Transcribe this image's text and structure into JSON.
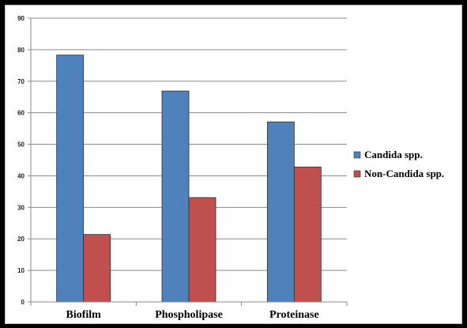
{
  "chart_data": {
    "type": "bar",
    "categories": [
      "Biofilm",
      "Phospholipase",
      "Proteinase"
    ],
    "series": [
      {
        "name": "Candida spp.",
        "values": [
          78.3,
          66.9,
          57.1
        ],
        "color": "#4f81bd"
      },
      {
        "name": "Non-Candida spp.",
        "values": [
          21.4,
          33.1,
          42.8
        ],
        "color": "#c0504d"
      }
    ],
    "ylim": [
      0,
      90
    ],
    "yticks": [
      0,
      10,
      20,
      30,
      40,
      50,
      60,
      70,
      80,
      90
    ],
    "title": "",
    "xlabel": "",
    "ylabel": "",
    "grid": true,
    "legend_position": "right"
  }
}
